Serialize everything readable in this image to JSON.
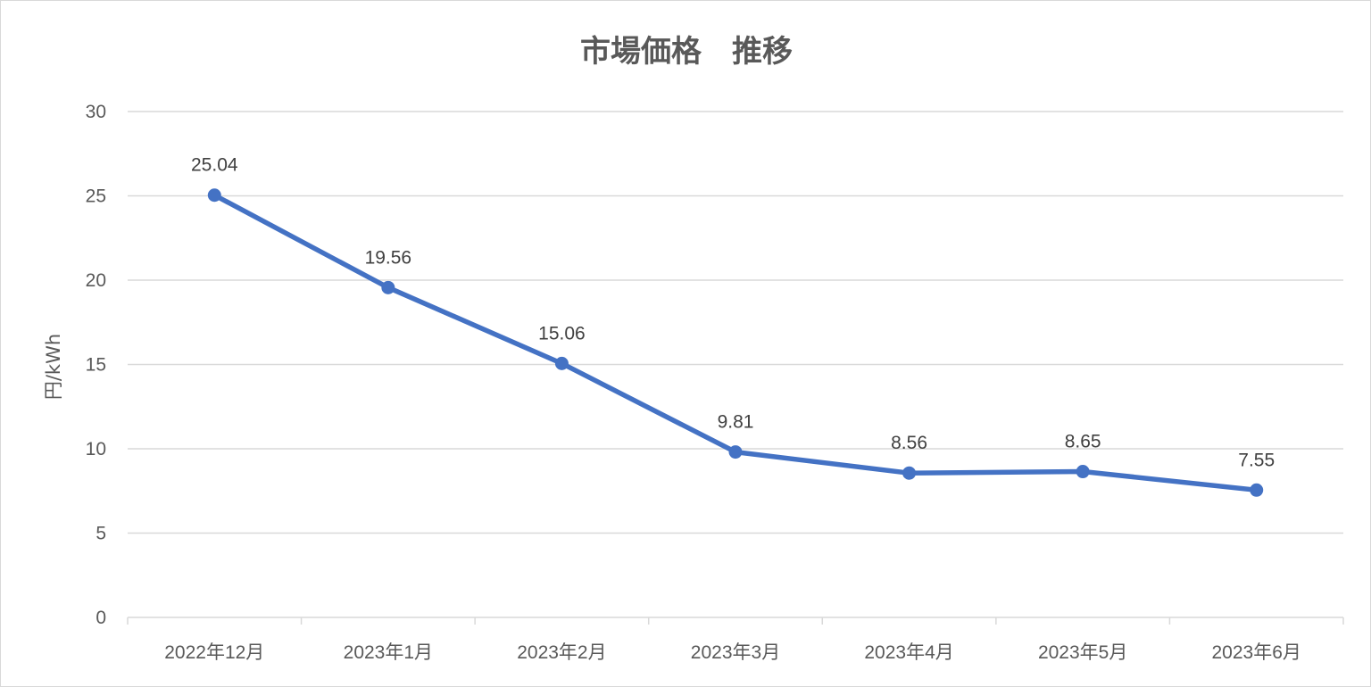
{
  "chart_data": {
    "type": "line",
    "title": "市場価格　推移",
    "xlabel": "",
    "ylabel": "円/kWh",
    "categories": [
      "2022年12月",
      "2023年1月",
      "2023年2月",
      "2023年3月",
      "2023年4月",
      "2023年5月",
      "2023年6月"
    ],
    "series": [
      {
        "values": [
          25.04,
          19.56,
          15.06,
          9.81,
          8.56,
          8.65,
          7.55
        ]
      }
    ],
    "data_labels": [
      "25.04",
      "19.56",
      "15.06",
      "9.81",
      "8.56",
      "8.65",
      "7.55"
    ],
    "ylim": [
      0,
      30
    ],
    "yticks": [
      "0",
      "5",
      "10",
      "15",
      "20",
      "25",
      "30"
    ],
    "grid": true,
    "legend": "none",
    "line_color": "#4472c4"
  }
}
